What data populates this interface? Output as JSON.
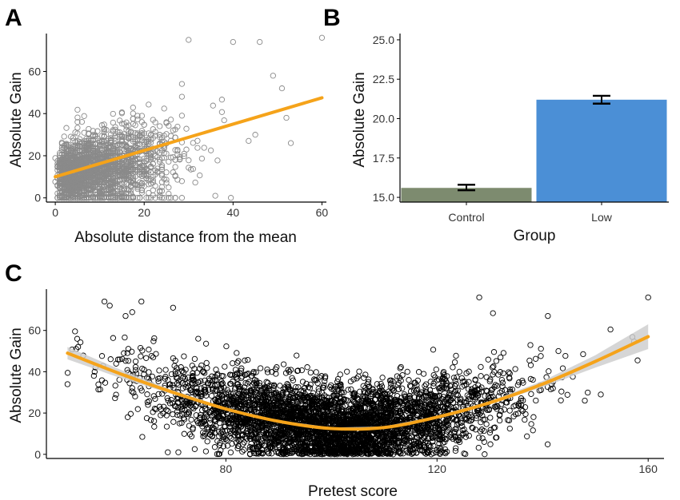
{
  "colors": {
    "trend": "#f5a31a",
    "scatter_a": "#8a8a8a",
    "scatter_c": "#000000",
    "bar_control": "#7d8b6f",
    "bar_low": "#4b8fd6",
    "ci_band": "#cfcfcf"
  },
  "panels": {
    "a": "A",
    "b": "B",
    "c": "C"
  },
  "chart_data": [
    {
      "id": "A",
      "type": "scatter",
      "title": "",
      "xlabel": "Absolute distance from the mean",
      "ylabel": "Absolute Gain",
      "xlim": [
        -2,
        61
      ],
      "ylim": [
        -2,
        78
      ],
      "xticks": [
        0,
        20,
        40,
        60
      ],
      "yticks": [
        0,
        20,
        40,
        60
      ],
      "fit_line": {
        "x": [
          0,
          60
        ],
        "y": [
          10,
          47.5
        ]
      },
      "notable_points": [
        {
          "x": 30,
          "y": 75
        },
        {
          "x": 40,
          "y": 74
        },
        {
          "x": 46,
          "y": 74
        },
        {
          "x": 60,
          "y": 76
        },
        {
          "x": 51,
          "y": 52
        },
        {
          "x": 49,
          "y": 58
        },
        {
          "x": 52,
          "y": 38
        },
        {
          "x": 53,
          "y": 26
        },
        {
          "x": 36,
          "y": 1
        }
      ]
    },
    {
      "id": "B",
      "type": "bar",
      "title": "",
      "xlabel": "Group",
      "ylabel": "Absolute Gain",
      "categories": [
        "Control",
        "Low"
      ],
      "values": [
        15.6,
        21.2
      ],
      "error_low": [
        15.45,
        20.95
      ],
      "error_high": [
        15.8,
        21.45
      ],
      "ylim": [
        14.7,
        25.4
      ],
      "yticks": [
        "15.0",
        "17.5",
        "20.0",
        "22.5",
        "25.0"
      ],
      "ytick_values": [
        15,
        17.5,
        20,
        22.5,
        25
      ]
    },
    {
      "id": "C",
      "type": "scatter",
      "title": "",
      "xlabel": "Pretest score",
      "ylabel": "Absolute Gain",
      "xlim": [
        46,
        163
      ],
      "ylim": [
        -2,
        80
      ],
      "xticks": [
        80,
        120,
        160
      ],
      "yticks": [
        0,
        20,
        40,
        60
      ],
      "fit_curve": {
        "x": [
          50,
          60,
          70,
          80,
          90,
          100,
          110,
          120,
          130,
          140,
          150,
          160
        ],
        "y": [
          49,
          39,
          30,
          22,
          16,
          12.5,
          13,
          18,
          25,
          34,
          45,
          57
        ]
      },
      "ci_band": {
        "x": [
          50,
          60,
          70,
          80,
          90,
          100,
          110,
          120,
          130,
          140,
          150,
          160
        ],
        "upper": [
          52,
          41,
          31,
          22.6,
          16.5,
          13,
          13.5,
          18.6,
          25.8,
          35.5,
          48,
          63
        ],
        "lower": [
          46,
          37,
          29,
          21.4,
          15.5,
          12,
          12.5,
          17.4,
          24.2,
          32.5,
          42,
          51
        ]
      },
      "notable_points": [
        {
          "x": 52,
          "y": 52
        },
        {
          "x": 55,
          "y": 38
        },
        {
          "x": 57,
          "y": 74
        },
        {
          "x": 58,
          "y": 72
        },
        {
          "x": 61,
          "y": 67
        },
        {
          "x": 64,
          "y": 74
        },
        {
          "x": 70,
          "y": 71
        },
        {
          "x": 69,
          "y": 1
        },
        {
          "x": 71,
          "y": 1
        },
        {
          "x": 128,
          "y": 76
        },
        {
          "x": 141,
          "y": 67
        },
        {
          "x": 148,
          "y": 26
        },
        {
          "x": 160,
          "y": 76
        },
        {
          "x": 143,
          "y": 50
        }
      ]
    }
  ]
}
